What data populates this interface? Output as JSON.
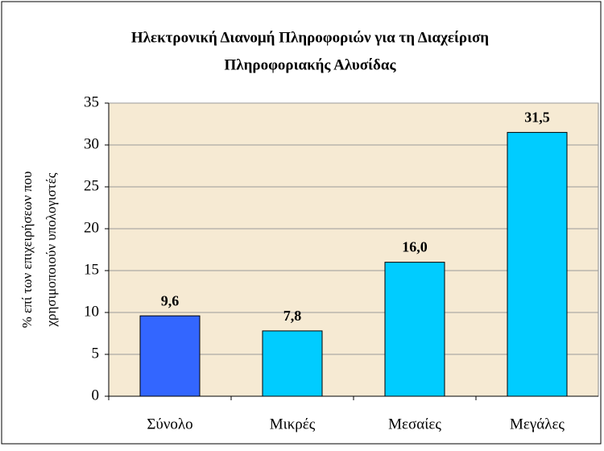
{
  "chart_data": {
    "type": "bar",
    "title": [
      "Ηλεκτρονική Διανομή Πληροφοριών για τη Διαχείριση",
      "Πληροφοριακής Αλυσίδας"
    ],
    "y_label": [
      "% επί των επιχειρήσεων που",
      "χρησιμοποιούν υπολογιστές"
    ],
    "categories": [
      "Σύνολο",
      "Μικρές",
      "Μεσαίες",
      "Μεγάλες"
    ],
    "values": [
      9.6,
      7.8,
      16.0,
      31.5
    ],
    "value_labels": [
      "9,6",
      "7,8",
      "16,0",
      "31,5"
    ],
    "colors": [
      "#3366ff",
      "#00ccff",
      "#00ccff",
      "#00ccff"
    ],
    "ylim": [
      0,
      35
    ],
    "yticks": [
      0,
      5,
      10,
      15,
      20,
      25,
      30,
      35
    ],
    "grid": true
  }
}
